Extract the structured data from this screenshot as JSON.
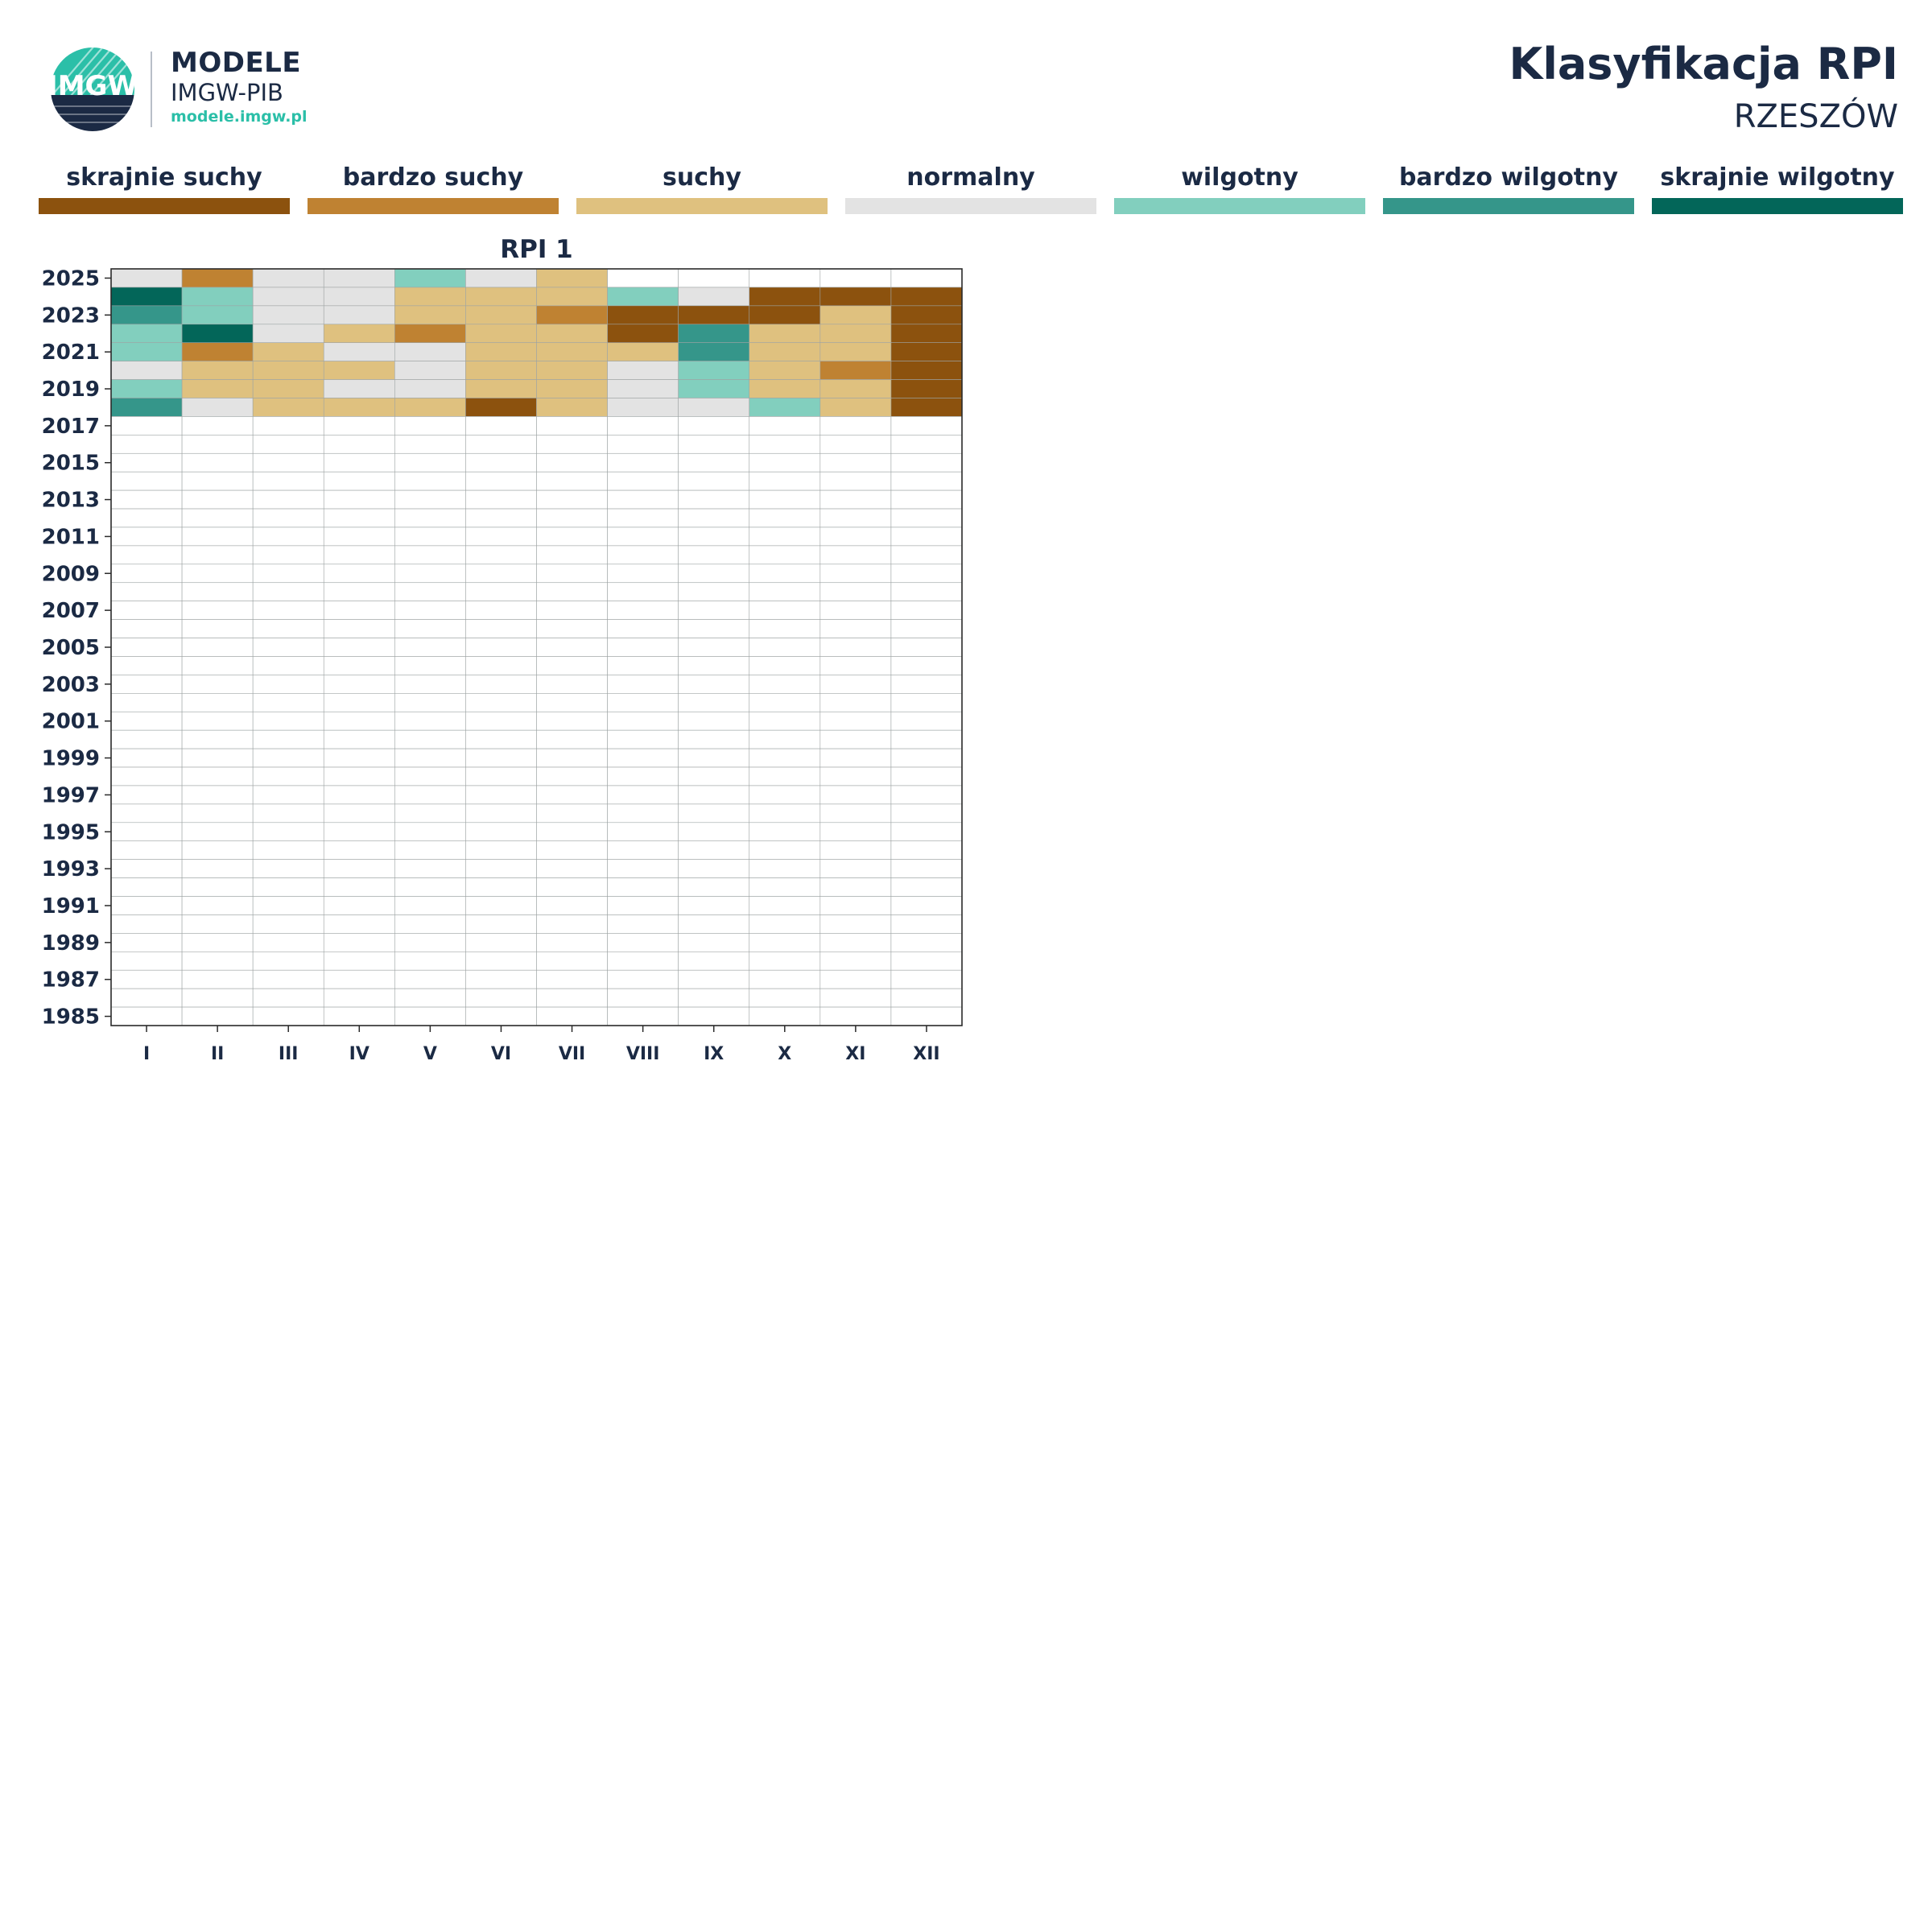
{
  "header": {
    "logo_text": "IMGW",
    "brand_title": "MODELE",
    "brand_sub": "IMGW-PIB",
    "brand_url": "modele.imgw.pl",
    "title": "Klasyfikacja RPI",
    "subtitle": "RZESZÓW"
  },
  "legend": [
    {
      "label": "skrajnie suchy",
      "color": "#8c520e"
    },
    {
      "label": "bardzo suchy",
      "color": "#bf8232"
    },
    {
      "label": "suchy",
      "color": "#dfc17f"
    },
    {
      "label": "normalny",
      "color": "#e3e3e3"
    },
    {
      "label": "wilgotny",
      "color": "#82cfbe"
    },
    {
      "label": "bardzo wilgotny",
      "color": "#35968a"
    },
    {
      "label": "skrajnie wilgotny",
      "color": "#036659"
    }
  ],
  "chart_data": [
    {
      "type": "heatmap",
      "title": "RPI 1",
      "categories": [
        "I",
        "II",
        "III",
        "IV",
        "V",
        "VI",
        "VII",
        "VIII",
        "IX",
        "X",
        "XI",
        "XII"
      ],
      "year_ticks": [
        "2025",
        "2023",
        "2021",
        "2019",
        "2017",
        "2015",
        "2013",
        "2011",
        "2009",
        "2007",
        "2005",
        "2003",
        "2001",
        "1999",
        "1997",
        "1995",
        "1993",
        "1991",
        "1989",
        "1987",
        "1985"
      ],
      "rows_from_2025": [
        "3133432........",
        "64332224300000",
        "54332210002000",
        "46321220522000",
        "41233222522000",
        "32223223421000",
        "42233223422000",
        "53222023342000"
      ]
    }
  ]
}
